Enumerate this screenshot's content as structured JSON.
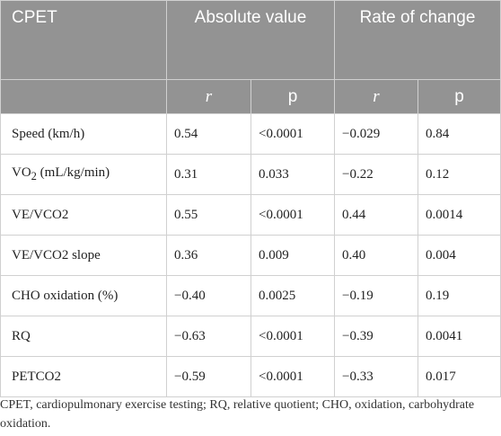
{
  "table": {
    "header": {
      "stub": "CPET",
      "group1": "Absolute value",
      "group2": "Rate of change",
      "subheaders": [
        "r",
        "p",
        "r",
        "p"
      ]
    },
    "rows": [
      {
        "label_main": "Speed (km/h)",
        "label_sub": "",
        "label_rest": "",
        "cells": [
          "0.54",
          "<0.0001",
          "−0.029",
          "0.84"
        ]
      },
      {
        "label_main": "VO",
        "label_sub": "2",
        "label_rest": " (mL/kg/min)",
        "cells": [
          "0.31",
          "0.033",
          "−0.22",
          "0.12"
        ]
      },
      {
        "label_main": "VE/VCO2",
        "label_sub": "",
        "label_rest": "",
        "cells": [
          "0.55",
          "<0.0001",
          "0.44",
          "0.0014"
        ]
      },
      {
        "label_main": "VE/VCO2 slope",
        "label_sub": "",
        "label_rest": "",
        "cells": [
          "0.36",
          "0.009",
          "0.40",
          "0.004"
        ]
      },
      {
        "label_main": "CHO oxidation (%)",
        "label_sub": "",
        "label_rest": "",
        "cells": [
          "−0.40",
          "0.0025",
          "−0.19",
          "0.19"
        ]
      },
      {
        "label_main": "RQ",
        "label_sub": "",
        "label_rest": "",
        "cells": [
          "−0.63",
          "<0.0001",
          "−0.39",
          "0.0041"
        ]
      },
      {
        "label_main": "PETCO2",
        "label_sub": "",
        "label_rest": "",
        "cells": [
          "−0.59",
          "<0.0001",
          "−0.33",
          "0.017"
        ]
      }
    ]
  },
  "footnote": "CPET, cardiopulmonary exercise testing; RQ, relative quotient; CHO, oxidation, carbohydrate oxidation.",
  "colors": {
    "header_bg": "#939393",
    "header_text": "#ffffff",
    "border": "#d0d0d0"
  }
}
